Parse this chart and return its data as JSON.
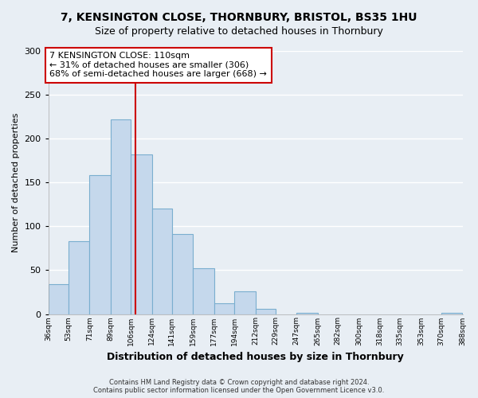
{
  "title": "7, KENSINGTON CLOSE, THORNBURY, BRISTOL, BS35 1HU",
  "subtitle": "Size of property relative to detached houses in Thornbury",
  "xlabel": "Distribution of detached houses by size in Thornbury",
  "ylabel": "Number of detached properties",
  "bar_color": "#c5d8ec",
  "bar_edge_color": "#7aaecf",
  "vline_x": 110,
  "vline_color": "#cc0000",
  "annotation_text": "7 KENSINGTON CLOSE: 110sqm\n← 31% of detached houses are smaller (306)\n68% of semi-detached houses are larger (668) →",
  "annotation_box_color": "white",
  "annotation_box_edge": "#cc0000",
  "footnote": "Contains HM Land Registry data © Crown copyright and database right 2024.\nContains public sector information licensed under the Open Government Licence v3.0.",
  "bin_edges": [
    36,
    53,
    71,
    89,
    106,
    124,
    141,
    159,
    177,
    194,
    212,
    229,
    247,
    265,
    282,
    300,
    318,
    335,
    353,
    370,
    388
  ],
  "bin_labels": [
    "36sqm",
    "53sqm",
    "71sqm",
    "89sqm",
    "106sqm",
    "124sqm",
    "141sqm",
    "159sqm",
    "177sqm",
    "194sqm",
    "212sqm",
    "229sqm",
    "247sqm",
    "265sqm",
    "282sqm",
    "300sqm",
    "318sqm",
    "335sqm",
    "353sqm",
    "370sqm",
    "388sqm"
  ],
  "counts": [
    34,
    83,
    158,
    222,
    182,
    120,
    91,
    52,
    12,
    26,
    6,
    0,
    1,
    0,
    0,
    0,
    0,
    0,
    0,
    1
  ],
  "ylim": [
    0,
    300
  ],
  "yticks": [
    0,
    50,
    100,
    150,
    200,
    250,
    300
  ],
  "background_color": "#e8eef4",
  "plot_bg_color": "#e8eef4",
  "grid_color": "#ffffff",
  "title_fontsize": 10,
  "subtitle_fontsize": 9
}
